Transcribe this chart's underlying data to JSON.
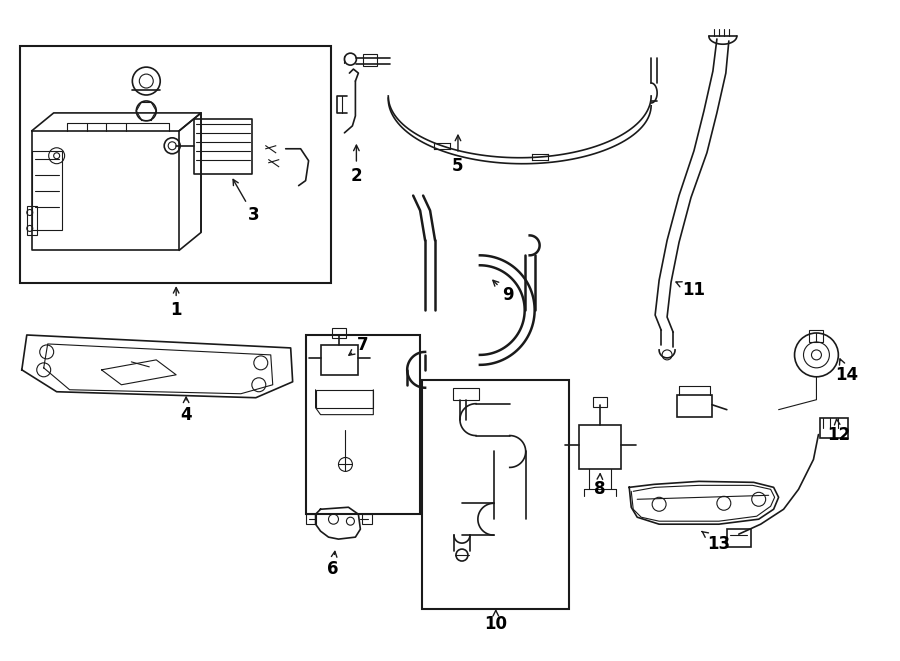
{
  "background_color": "#ffffff",
  "line_color": "#1a1a1a",
  "label_color": "#000000",
  "fig_width": 9.0,
  "fig_height": 6.61,
  "dpi": 100
}
